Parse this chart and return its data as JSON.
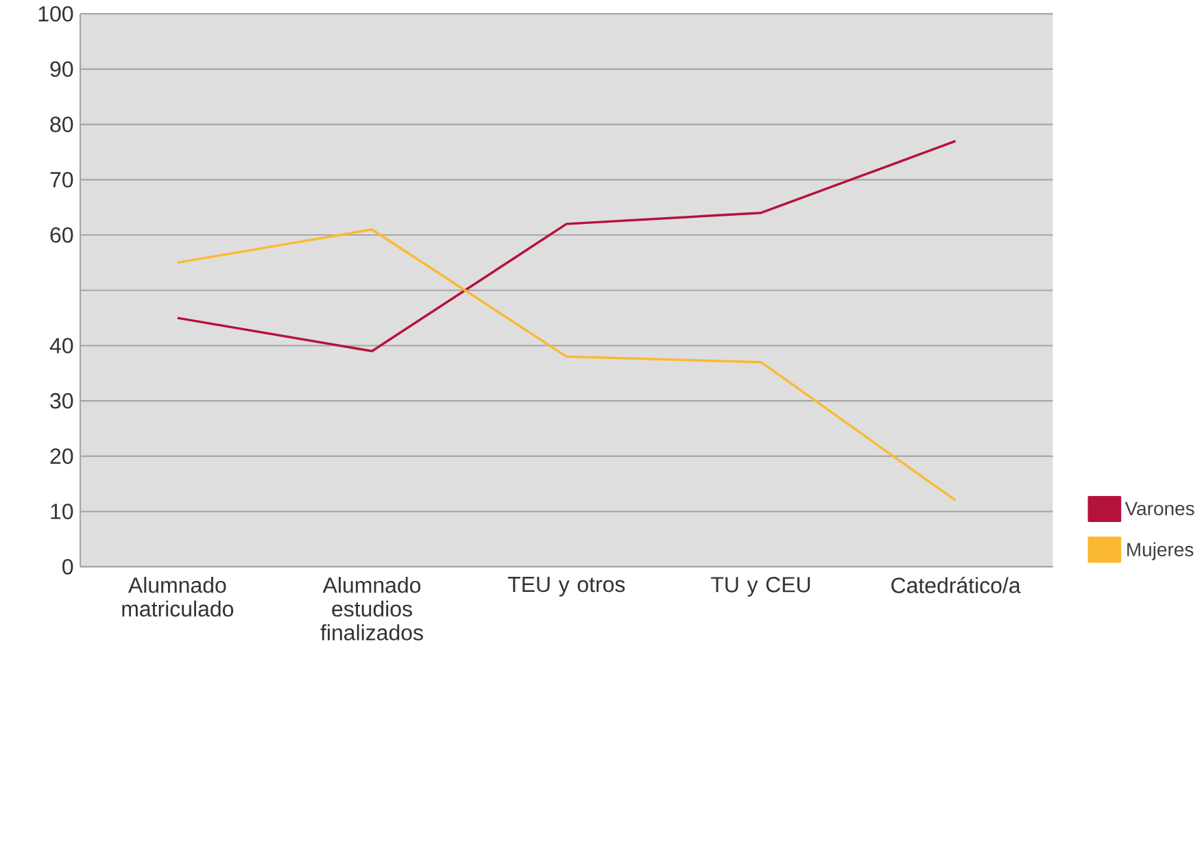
{
  "chart_data": {
    "type": "line",
    "categories": [
      "Alumnado matriculado",
      "Alumnado estudios finalizados",
      "TEU y otros",
      "TU y CEU",
      "Catedrático/a"
    ],
    "series": [
      {
        "name": "Varones",
        "color": "#b5123a",
        "values": [
          45,
          39,
          62,
          64,
          77
        ]
      },
      {
        "name": "Mujeres",
        "color": "#fbb931",
        "values": [
          55,
          61,
          38,
          37,
          12
        ]
      }
    ],
    "ylim": [
      0,
      100
    ],
    "yticks": [
      0,
      10,
      20,
      30,
      40,
      {
        "value": 50,
        "label": null
      },
      60,
      70,
      80,
      90,
      100
    ],
    "grid": "y",
    "legend": "bottom right",
    "marker": "none",
    "line_style": "solid"
  }
}
